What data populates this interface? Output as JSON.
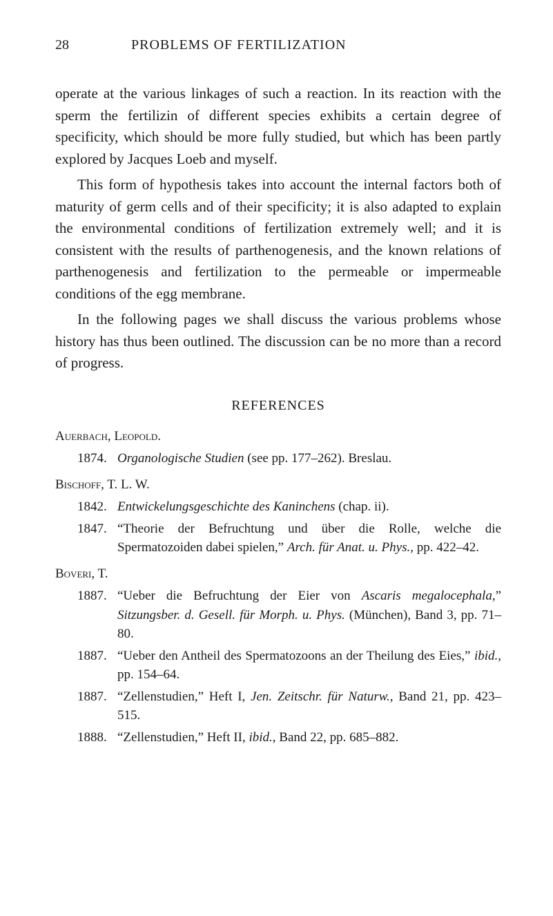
{
  "header": {
    "page_number": "28",
    "chapter_title": "PROBLEMS OF FERTILIZATION"
  },
  "paragraphs": {
    "p1": "operate at the various linkages of such a reaction. In its reaction with the sperm the fertilizin of different species exhibits a certain degree of specificity, which should be more fully studied, but which has been partly explored by Jacques Loeb and myself.",
    "p2": "This form of hypothesis takes into account the inter­nal factors both of maturity of germ cells and of their specificity; it is also adapted to explain the environ­mental conditions of fertilization extremely well; and it is consistent with the results of parthenogenesis, and the known relations of parthenogenesis and fertilization to the permeable or impermeable conditions of the egg membrane.",
    "p3": "In the following pages we shall discuss the various problems whose history has thus been outlined. The discussion can be no more than a record of progress."
  },
  "references": {
    "title": "REFERENCES",
    "authors": {
      "auerbach": {
        "name": "Auerbach, Leopold.",
        "entries": [
          {
            "year": "1874.",
            "text_pre": "",
            "italic1": "Organologische Studien",
            "text_mid": " (see pp. 177–262).  Breslau.",
            "italic2": "",
            "text_end": ""
          }
        ]
      },
      "bischoff": {
        "name": "Bischoff, T. L. W.",
        "entries": [
          {
            "year": "1842.",
            "text_pre": "",
            "italic1": "Entwickelungsgeschichte des Kaninchens",
            "text_mid": " (chap. ii).",
            "italic2": "",
            "text_end": ""
          },
          {
            "year": "1847.",
            "text_pre": "“Theorie der Befruchtung und über die Rolle, welche die Spermatozoiden dabei spielen,” ",
            "italic1": "Arch. für Anat. u. Phys.",
            "text_mid": ", pp. 422–42.",
            "italic2": "",
            "text_end": ""
          }
        ]
      },
      "boveri": {
        "name": "Boveri, T.",
        "entries": [
          {
            "year": "1887.",
            "text_pre": "“Ueber die Befruchtung der Eier von ",
            "italic1": "Ascaris megalo­cephala",
            "text_mid": ",” ",
            "italic2": "Sitzungsber. d. Gesell. für Morph. u. Phys.",
            "text_end": " (München), Band 3, pp. 71–80."
          },
          {
            "year": "1887.",
            "text_pre": "“Ueber den Antheil des Spermatozoons an der Theilung des Eies,” ",
            "italic1": "ibid.",
            "text_mid": ", pp. 154–64.",
            "italic2": "",
            "text_end": ""
          },
          {
            "year": "1887.",
            "text_pre": "“Zellenstudien,” Heft I, ",
            "italic1": "Jen. Zeitschr. für Naturw.",
            "text_mid": ", Band 21, pp. 423–515.",
            "italic2": "",
            "text_end": ""
          },
          {
            "year": "1888.",
            "text_pre": "“Zellenstudien,” Heft II, ",
            "italic1": "ibid.",
            "text_mid": ", Band 22, pp. 685–882.",
            "italic2": "",
            "text_end": ""
          }
        ]
      }
    }
  }
}
